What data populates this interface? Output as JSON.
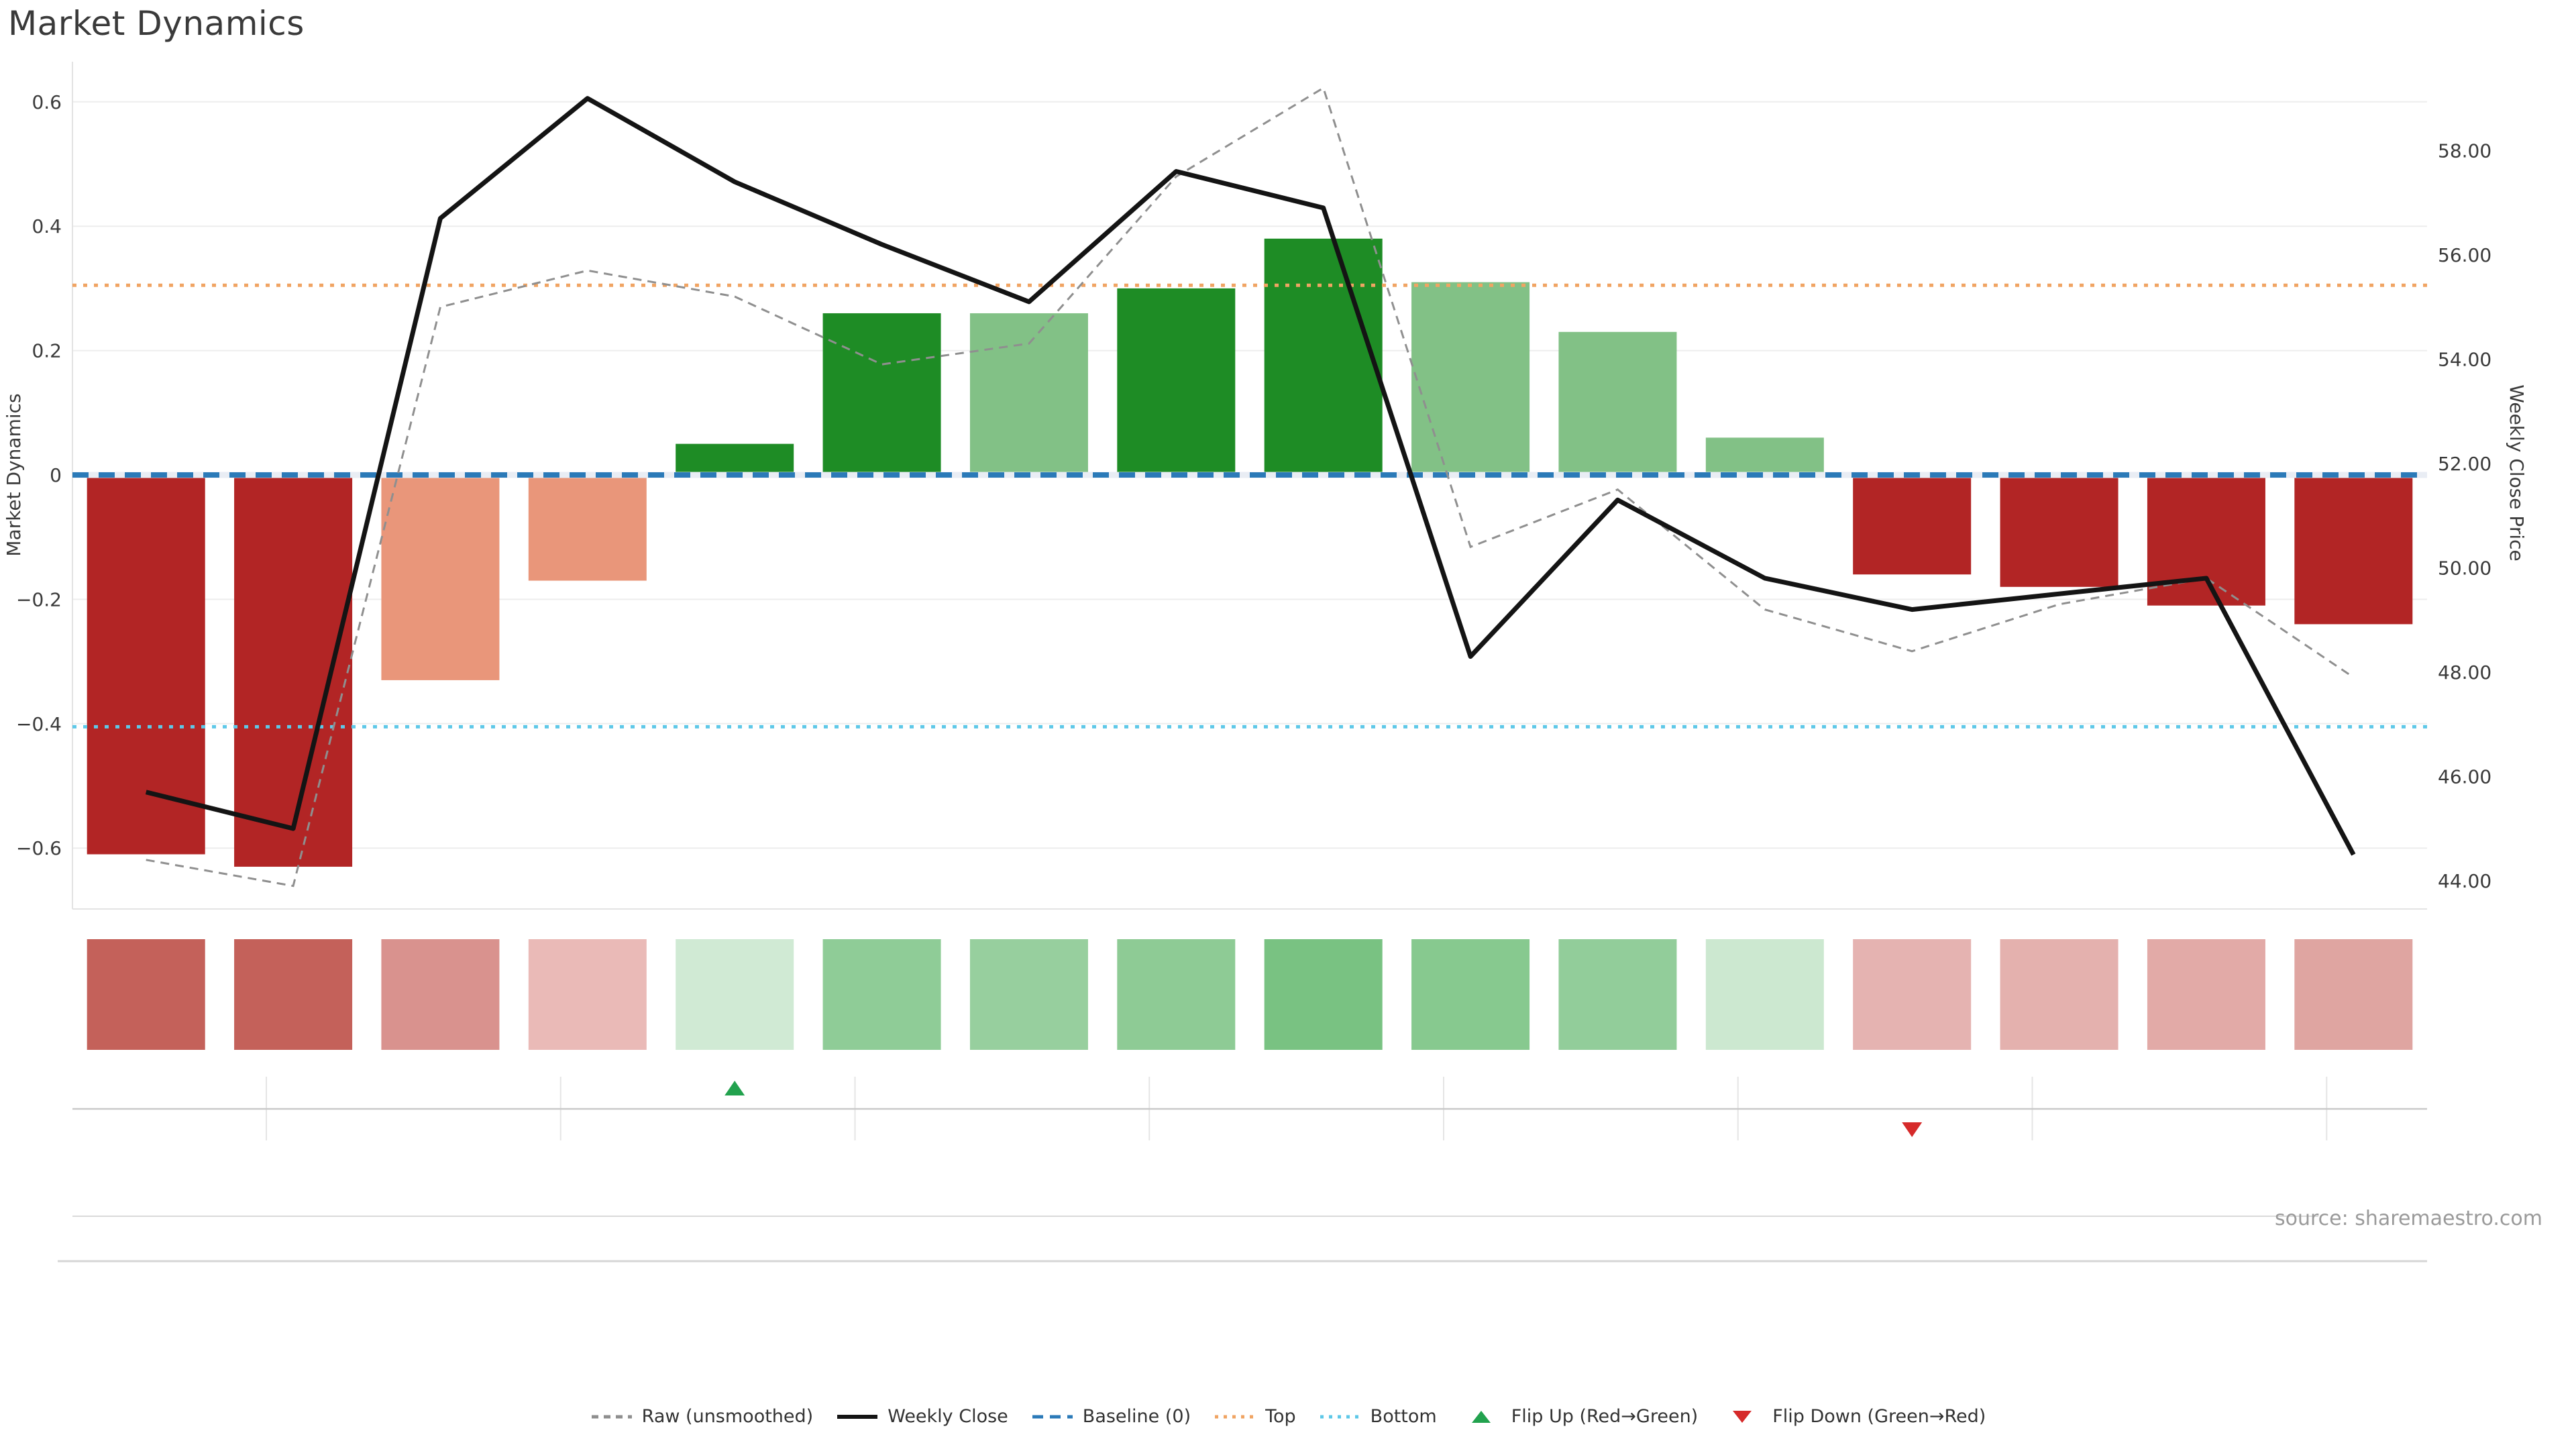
{
  "title": "Market Dynamics",
  "source": "source: sharemaestro.com",
  "axes": {
    "left": {
      "label": "Market Dynamics",
      "tick_values": [
        0.6,
        0.4,
        0.2,
        0,
        -0.2,
        -0.4,
        -0.6
      ],
      "tick_labels": [
        "0.6",
        "0.4",
        "0.2",
        "0",
        "−0.2",
        "−0.4",
        "−0.6"
      ],
      "range": [
        -0.7,
        0.665
      ],
      "grid": true
    },
    "right": {
      "label": "Weekly Close Price",
      "tick_values": [
        58,
        56,
        54,
        52,
        50,
        48,
        46,
        44
      ],
      "tick_labels": [
        "58.00",
        "56.00",
        "54.00",
        "52.00",
        "50.00",
        "48.00",
        "46.00",
        "44.00"
      ],
      "range": [
        42.5,
        59.85
      ],
      "grid": false
    }
  },
  "chart_data": {
    "type": "bar+line",
    "x": [
      1,
      2,
      3,
      4,
      5,
      6,
      7,
      8,
      9,
      10,
      11,
      12,
      13,
      14,
      15,
      16
    ],
    "series": [
      {
        "name": "Market Dynamics (bars)",
        "type": "bar",
        "axis": "left",
        "values": [
          -0.61,
          -0.63,
          -0.33,
          -0.17,
          0.05,
          0.26,
          0.26,
          0.3,
          0.38,
          0.31,
          0.23,
          0.06,
          -0.16,
          -0.18,
          -0.21,
          -0.24
        ],
        "colors": [
          "#b22525",
          "#b22525",
          "#e9967a",
          "#e9967a",
          "#1e8c25",
          "#1e8c25",
          "#82c186",
          "#1e8c25",
          "#1e8c25",
          "#82c186",
          "#82c186",
          "#82c186",
          "#b22525",
          "#b22525",
          "#b22525",
          "#b22525"
        ]
      },
      {
        "name": "Weekly Close",
        "type": "line",
        "axis": "right",
        "color": "#141414",
        "values": [
          45.7,
          45.0,
          56.7,
          59.0,
          57.4,
          56.2,
          55.1,
          57.6,
          56.9,
          48.3,
          51.3,
          49.8,
          49.2,
          49.5,
          49.8,
          44.5
        ]
      },
      {
        "name": "Raw (unsmoothed)",
        "type": "line-dashed",
        "axis": "right",
        "color": "#8f8f8f",
        "values": [
          44.4,
          43.9,
          55.0,
          55.7,
          55.2,
          53.9,
          54.3,
          57.5,
          59.2,
          50.4,
          51.5,
          49.2,
          48.4,
          49.3,
          49.8,
          47.9
        ]
      },
      {
        "name": "Baseline (0)",
        "type": "hline",
        "axis": "left",
        "value": 0,
        "color": "#2b7ab8",
        "style": "dashed"
      },
      {
        "name": "Top",
        "type": "hline",
        "axis": "left",
        "value": 0.305,
        "color": "#f0a463",
        "style": "dotted"
      },
      {
        "name": "Bottom",
        "type": "hline",
        "axis": "left",
        "value": -0.405,
        "color": "#5ec8e8",
        "style": "dotted"
      }
    ],
    "heatmap_row": {
      "colors": [
        "#c4615a",
        "#c4615a",
        "#d9928e",
        "#eabab7",
        "#d0ead4",
        "#8fcc97",
        "#97cf9e",
        "#8ecb95",
        "#79c282",
        "#87c98f",
        "#92cd9a",
        "#cce8d0",
        "#e5b3b1",
        "#e4b1ae",
        "#e2aaa7",
        "#dfa5a1"
      ]
    },
    "markers": [
      {
        "type": "flip_up",
        "column": 5,
        "color": "#22a24e"
      },
      {
        "type": "flip_down",
        "column": 13,
        "color": "#d62a2a"
      }
    ],
    "legend_position": "bottom-center"
  },
  "legend": {
    "items": [
      {
        "label": "Raw (unsmoothed)",
        "swatch": "dashed-line",
        "color": "#8f8f8f"
      },
      {
        "label": "Weekly Close",
        "swatch": "solid-line",
        "color": "#141414"
      },
      {
        "label": "Baseline (0)",
        "swatch": "dashed-line-big",
        "color": "#2b7ab8"
      },
      {
        "label": "Top",
        "swatch": "dotted-line",
        "color": "#f0a463"
      },
      {
        "label": "Bottom",
        "swatch": "dotted-line",
        "color": "#5ec8e8"
      },
      {
        "label": "Flip Up (Red→Green)",
        "swatch": "triangle-up",
        "color": "#22a24e"
      },
      {
        "label": "Flip Down (Green→Red)",
        "swatch": "triangle-down",
        "color": "#d62a2a"
      }
    ]
  },
  "colors": {
    "background": "#ffffff",
    "grid": "#ededed",
    "spine": "#e3e3e3",
    "baseline_underlay": "#e9edf4",
    "text": "#3a3a3a",
    "source_text": "#9a9a9a",
    "bar_dark_red": "#b22525",
    "bar_salmon": "#e9967a",
    "bar_dark_green": "#1e8c25",
    "bar_mid_green": "#82c186"
  }
}
